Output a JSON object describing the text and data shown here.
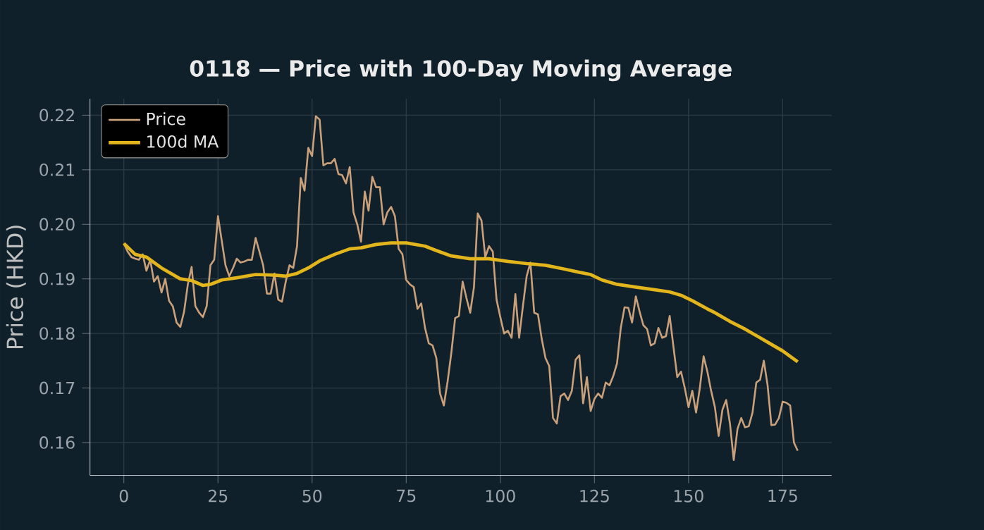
{
  "chart_data": {
    "type": "line",
    "title": "0118 — Price with 100-Day Moving Average",
    "ylabel": "Price (HKD)",
    "xlim": [
      -9,
      188
    ],
    "ylim": [
      0.154,
      0.223
    ],
    "xticks": [
      0,
      25,
      50,
      75,
      100,
      125,
      150,
      175
    ],
    "yticks": [
      0.16,
      0.17,
      0.18,
      0.19,
      {
        "value": 0.2,
        "label": "0.20"
      },
      0.21,
      0.22
    ],
    "grid": true,
    "legend": "top left",
    "series": [
      {
        "name": "Price",
        "color": "#c9a07a",
        "x": [
          0,
          1,
          2,
          3,
          4,
          5,
          6,
          7,
          8,
          9,
          10,
          11,
          12,
          13,
          14,
          15,
          16,
          17,
          18,
          19,
          20,
          21,
          22,
          23,
          24,
          25,
          26,
          27,
          28,
          29,
          30,
          31,
          32,
          33,
          34,
          35,
          36,
          37,
          38,
          39,
          40,
          41,
          42,
          43,
          44,
          45,
          46,
          47,
          48,
          49,
          50,
          51,
          52,
          53,
          54,
          55,
          56,
          57,
          58,
          59,
          60,
          61,
          62,
          63,
          64,
          65,
          66,
          67,
          68,
          69,
          70,
          71,
          72,
          73,
          74,
          75,
          76,
          77,
          78,
          79,
          80,
          81,
          82,
          83,
          84,
          85,
          86,
          87,
          88,
          89,
          90,
          91,
          92,
          93,
          94,
          95,
          96,
          97,
          98,
          99,
          100,
          101,
          102,
          103,
          104,
          105,
          106,
          107,
          108,
          109,
          110,
          111,
          112,
          113,
          114,
          115,
          116,
          117,
          118,
          119,
          120,
          121,
          122,
          123,
          124,
          125,
          126,
          127,
          128,
          129,
          130,
          131,
          132,
          133,
          134,
          135,
          136,
          137,
          138,
          139,
          140,
          141,
          142,
          143,
          144,
          145,
          146,
          147,
          148,
          149,
          150,
          151,
          152,
          153,
          154,
          155,
          156,
          157,
          158,
          159,
          160,
          161,
          162,
          163,
          164,
          165,
          166,
          167,
          168,
          169,
          170,
          171,
          172,
          173,
          174,
          175,
          176,
          177,
          178,
          179
        ],
        "values": [
          0.1965,
          0.195,
          0.194,
          0.1937,
          0.1935,
          0.1945,
          0.1915,
          0.1935,
          0.1895,
          0.1905,
          0.1875,
          0.19,
          0.186,
          0.185,
          0.182,
          0.1812,
          0.184,
          0.189,
          0.1922,
          0.185,
          0.1838,
          0.183,
          0.185,
          0.1925,
          0.1935,
          0.2015,
          0.197,
          0.1925,
          0.1905,
          0.192,
          0.1937,
          0.193,
          0.1932,
          0.1935,
          0.1935,
          0.1975,
          0.195,
          0.1925,
          0.1873,
          0.1873,
          0.191,
          0.1862,
          0.1858,
          0.1895,
          0.1925,
          0.192,
          0.196,
          0.2085,
          0.2062,
          0.214,
          0.2125,
          0.2198,
          0.2192,
          0.2108,
          0.2112,
          0.2112,
          0.212,
          0.2092,
          0.209,
          0.2075,
          0.2105,
          0.2022,
          0.2,
          0.1968,
          0.206,
          0.2025,
          0.2087,
          0.2068,
          0.2068,
          0.2,
          0.2022,
          0.2032,
          0.2015,
          0.1955,
          0.1945,
          0.1898,
          0.189,
          0.1885,
          0.1845,
          0.1855,
          0.181,
          0.1782,
          0.1778,
          0.1755,
          0.169,
          0.1668,
          0.1712,
          0.1765,
          0.1828,
          0.1832,
          0.1895,
          0.1865,
          0.1838,
          0.1885,
          0.202,
          0.2007,
          0.194,
          0.196,
          0.195,
          0.1862,
          0.183,
          0.18,
          0.1805,
          0.1792,
          0.1872,
          0.1792,
          0.185,
          0.1905,
          0.193,
          0.1838,
          0.1835,
          0.179,
          0.1755,
          0.174,
          0.1645,
          0.1635,
          0.1685,
          0.169,
          0.1678,
          0.1695,
          0.1752,
          0.176,
          0.1672,
          0.172,
          0.1658,
          0.168,
          0.169,
          0.1682,
          0.171,
          0.1705,
          0.1722,
          0.1745,
          0.181,
          0.1848,
          0.1847,
          0.182,
          0.1868,
          0.184,
          0.1815,
          0.1808,
          0.1778,
          0.1782,
          0.181,
          0.1792,
          0.1795,
          0.1832,
          0.1775,
          0.172,
          0.173,
          0.17,
          0.1665,
          0.1695,
          0.1655,
          0.17,
          0.1758,
          0.173,
          0.1695,
          0.1665,
          0.1612,
          0.166,
          0.1678,
          0.1635,
          0.1568,
          0.1625,
          0.1645,
          0.1628,
          0.163,
          0.1655,
          0.171,
          0.1715,
          0.175,
          0.1705,
          0.1632,
          0.1633,
          0.1645,
          0.1675,
          0.1673,
          0.1668,
          0.16,
          0.1585
        ]
      },
      {
        "name": "100d MA",
        "color": "#e3b51c",
        "x": [
          0,
          3,
          6,
          10,
          15,
          18,
          21,
          23,
          26,
          30,
          35,
          40,
          43,
          46,
          49,
          52,
          56,
          60,
          63,
          67,
          71,
          75,
          80,
          83,
          87,
          92,
          97,
          102,
          107,
          112,
          117,
          121,
          124,
          127,
          131,
          136,
          141,
          145,
          148,
          151,
          155,
          157,
          161,
          165,
          169,
          172,
          175,
          179
        ],
        "values": [
          0.1965,
          0.1945,
          0.194,
          0.192,
          0.19,
          0.1897,
          0.1888,
          0.189,
          0.1898,
          0.1902,
          0.1908,
          0.1907,
          0.1905,
          0.191,
          0.192,
          0.1933,
          0.1945,
          0.1955,
          0.1957,
          0.1963,
          0.1966,
          0.1966,
          0.196,
          0.1952,
          0.1942,
          0.1937,
          0.1937,
          0.1932,
          0.1928,
          0.1925,
          0.1918,
          0.1912,
          0.1908,
          0.1898,
          0.189,
          0.1885,
          0.188,
          0.1876,
          0.187,
          0.186,
          0.1845,
          0.1838,
          0.1822,
          0.1808,
          0.1792,
          0.178,
          0.1768,
          0.1748
        ]
      }
    ]
  }
}
